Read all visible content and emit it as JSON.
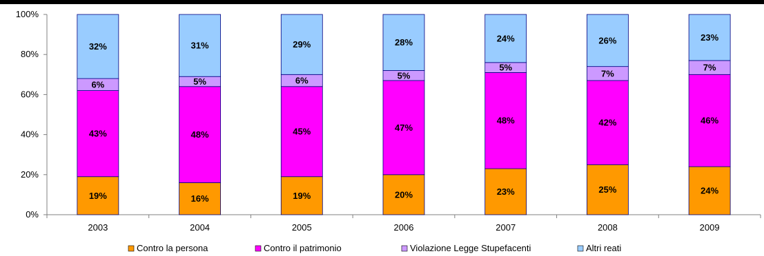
{
  "chart_data": {
    "type": "bar",
    "stacked": true,
    "categories": [
      "2003",
      "2004",
      "2005",
      "2006",
      "2007",
      "2008",
      "2009"
    ],
    "series": [
      {
        "name": "Contro la persona",
        "color": "#FF9900",
        "values": [
          19,
          16,
          19,
          20,
          23,
          25,
          24
        ],
        "labels": [
          "19%",
          "16%",
          "19%",
          "20%",
          "23%",
          "25%",
          "24%"
        ]
      },
      {
        "name": "Contro il patrimonio",
        "color": "#FF00FF",
        "values": [
          43,
          48,
          45,
          47,
          48,
          42,
          46
        ],
        "labels": [
          "43%",
          "48%",
          "45%",
          "47%",
          "48%",
          "42%",
          "46%"
        ]
      },
      {
        "name": "Violazione Legge Stupefacenti",
        "color": "#CC99FF",
        "values": [
          6,
          5,
          6,
          5,
          5,
          7,
          7
        ],
        "labels": [
          "6%",
          "5%",
          "6%",
          "5%",
          "5%",
          "7%",
          "7%"
        ]
      },
      {
        "name": "Altri reati",
        "color": "#99CCFF",
        "values": [
          32,
          31,
          29,
          28,
          24,
          26,
          23
        ],
        "labels": [
          "32%",
          "31%",
          "29%",
          "28%",
          "24%",
          "26%",
          "23%"
        ]
      }
    ],
    "y_ticks": [
      "0%",
      "20%",
      "40%",
      "60%",
      "80%",
      "100%"
    ],
    "ylim": [
      0,
      100
    ],
    "grid": false,
    "legend_position": "bottom"
  }
}
